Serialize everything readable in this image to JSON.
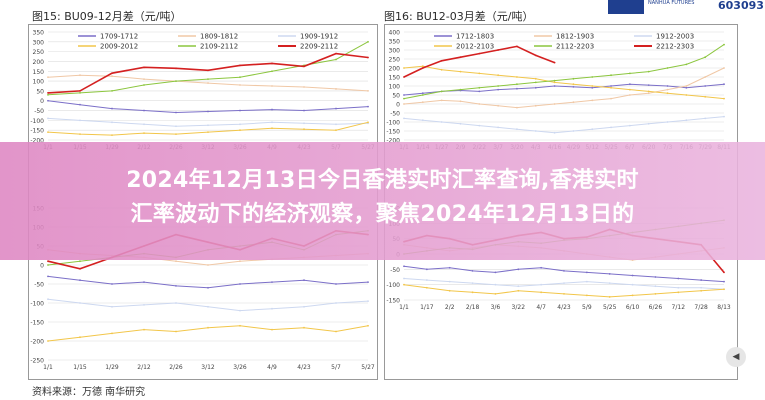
{
  "header": {
    "chart1_title": "图15:  BU09-12月差（元/吨）",
    "chart2_title": "图16:   BU12-03月差（元/吨）",
    "logo_text": "NANHUA FUTURES",
    "logo_code": "603093"
  },
  "banner": {
    "line1": "2024年12月13日今日香港实时汇率查询,香港实时",
    "line2": "汇率波动下的经济观察，聚焦2024年12月13日的"
  },
  "footer": {
    "source": "资料来源：万德  南华研究"
  },
  "colors": {
    "grid": "#dddddd",
    "axis": "#999999"
  },
  "chart_data": [
    {
      "type": "line",
      "title": "图15:  BU09-12月差（元/吨）",
      "categories": [
        "1/1",
        "1/15",
        "1/29",
        "2/12",
        "2/26",
        "3/12",
        "3/26",
        "4/9",
        "4/23",
        "5/7",
        "5/27"
      ],
      "ylim": [
        -200,
        350
      ],
      "yticks": [
        -200,
        -150,
        -100,
        -50,
        0,
        50,
        100,
        150,
        200,
        250,
        300,
        350
      ],
      "series": [
        {
          "name": "1709-1712",
          "color": "#7b6fc8",
          "values": [
            0,
            -20,
            -40,
            -50,
            -60,
            -55,
            -50,
            -45,
            -50,
            -40,
            -30
          ]
        },
        {
          "name": "1809-1812",
          "color": "#f0c8a6",
          "values": [
            120,
            130,
            125,
            110,
            100,
            90,
            80,
            75,
            70,
            60,
            50
          ]
        },
        {
          "name": "1909-1912",
          "color": "#cdd8f0",
          "values": [
            -90,
            -100,
            -110,
            -120,
            -130,
            -125,
            -120,
            -110,
            -115,
            -120,
            -115
          ]
        },
        {
          "name": "2009-2012",
          "color": "#f2c64a",
          "values": [
            -160,
            -170,
            -175,
            -165,
            -170,
            -160,
            -150,
            -140,
            -145,
            -150,
            -110
          ]
        },
        {
          "name": "2109-2112",
          "color": "#8cc63f",
          "values": [
            30,
            40,
            50,
            80,
            100,
            110,
            120,
            150,
            180,
            210,
            300
          ]
        },
        {
          "name": "2209-2112",
          "color": "#d42020",
          "values": [
            40,
            50,
            140,
            170,
            165,
            155,
            180,
            190,
            175,
            240,
            220
          ]
        }
      ]
    },
    {
      "type": "line",
      "title": "图16:   BU12-03月差（元/吨）",
      "categories": [
        "1/1",
        "1/14",
        "1/27",
        "2/9",
        "2/22",
        "3/7",
        "3/20",
        "4/3",
        "4/16",
        "4/29",
        "5/12",
        "5/25",
        "6/7",
        "6/20",
        "7/3",
        "7/16",
        "7/29",
        "8/11"
      ],
      "ylim": [
        -200,
        400
      ],
      "yticks": [
        -200,
        -150,
        -100,
        -50,
        0,
        50,
        100,
        150,
        200,
        250,
        300,
        350,
        400
      ],
      "series": [
        {
          "name": "1712-1803",
          "color": "#7b6fc8",
          "values": [
            50,
            60,
            70,
            75,
            70,
            80,
            85,
            90,
            100,
            95,
            90,
            100,
            110,
            105,
            100,
            90,
            100,
            110
          ]
        },
        {
          "name": "1812-1903",
          "color": "#f0c8a6",
          "values": [
            0,
            10,
            20,
            15,
            0,
            -10,
            -20,
            -10,
            0,
            10,
            20,
            30,
            50,
            60,
            80,
            100,
            150,
            200
          ]
        },
        {
          "name": "1912-2003",
          "color": "#cdd8f0",
          "values": [
            -80,
            -90,
            -100,
            -110,
            -120,
            -130,
            -140,
            -150,
            -160,
            -150,
            -140,
            -130,
            -120,
            -110,
            -100,
            -90,
            -80,
            -70
          ]
        },
        {
          "name": "2012-2103",
          "color": "#f2c64a",
          "values": [
            200,
            210,
            190,
            180,
            170,
            160,
            150,
            140,
            120,
            110,
            100,
            90,
            80,
            70,
            60,
            50,
            40,
            30
          ]
        },
        {
          "name": "2112-2203",
          "color": "#8cc63f",
          "values": [
            30,
            50,
            70,
            80,
            90,
            100,
            110,
            120,
            130,
            140,
            150,
            160,
            170,
            180,
            200,
            220,
            260,
            330
          ]
        },
        {
          "name": "2212-2303",
          "color": "#d42020",
          "values": [
            150,
            200,
            240,
            260,
            280,
            300,
            320,
            270,
            230,
            null,
            null,
            null,
            null,
            null,
            null,
            null,
            null,
            null
          ]
        }
      ]
    },
    {
      "type": "line",
      "title": "",
      "categories": [
        "1/1",
        "1/15",
        "1/29",
        "2/12",
        "2/26",
        "3/12",
        "3/26",
        "4/9",
        "4/23",
        "5/7",
        "5/27"
      ],
      "ylim": [
        -250,
        150
      ],
      "yticks": [
        -250,
        -200,
        -150,
        -100,
        -50,
        0,
        50,
        100,
        150
      ],
      "series": [
        {
          "name": "",
          "color": "#7b6fc8",
          "values": [
            -30,
            -40,
            -50,
            -45,
            -55,
            -60,
            -50,
            -45,
            -40,
            -50,
            -45
          ]
        },
        {
          "name": "",
          "color": "#f0c8a6",
          "values": [
            40,
            30,
            25,
            20,
            10,
            0,
            10,
            15,
            20,
            25,
            30
          ]
        },
        {
          "name": "",
          "color": "#cdd8f0",
          "values": [
            -90,
            -100,
            -110,
            -105,
            -100,
            -110,
            -120,
            -115,
            -110,
            -100,
            -95
          ]
        },
        {
          "name": "",
          "color": "#f2c64a",
          "values": [
            -200,
            -190,
            -180,
            -170,
            -175,
            -165,
            -160,
            -170,
            -165,
            -175,
            -160
          ]
        },
        {
          "name": "",
          "color": "#8cc63f",
          "values": [
            0,
            10,
            20,
            30,
            20,
            40,
            50,
            60,
            40,
            80,
            90
          ]
        },
        {
          "name": "",
          "color": "#d42020",
          "values": [
            10,
            -10,
            20,
            50,
            80,
            60,
            40,
            70,
            50,
            90,
            80
          ]
        }
      ]
    },
    {
      "type": "line",
      "title": "",
      "categories": [
        "1/1",
        "1/17",
        "2/2",
        "2/18",
        "3/6",
        "3/22",
        "4/7",
        "4/23",
        "5/9",
        "5/25",
        "6/10",
        "6/26",
        "7/12",
        "7/28",
        "8/13"
      ],
      "ylim": [
        -150,
        150
      ],
      "yticks": [
        -150,
        -100,
        -50,
        0,
        50,
        100,
        150
      ],
      "series": [
        {
          "name": "",
          "color": "#7b6fc8",
          "values": [
            -40,
            -50,
            -45,
            -55,
            -60,
            -50,
            -45,
            -55,
            -60,
            -65,
            -70,
            -75,
            -80,
            -85,
            -90
          ]
        },
        {
          "name": "",
          "color": "#f0c8a6",
          "values": [
            30,
            20,
            10,
            20,
            30,
            25,
            20,
            10,
            0,
            -10,
            -20,
            -10,
            0,
            10,
            20
          ]
        },
        {
          "name": "",
          "color": "#cdd8f0",
          "values": [
            -80,
            -85,
            -90,
            -95,
            -100,
            -105,
            -100,
            -95,
            -90,
            -95,
            -100,
            -105,
            -110,
            -110,
            -115
          ]
        },
        {
          "name": "",
          "color": "#f2c64a",
          "values": [
            -100,
            -110,
            -120,
            -125,
            -130,
            -120,
            -125,
            -130,
            -135,
            -140,
            -135,
            -130,
            -125,
            -120,
            -115
          ]
        },
        {
          "name": "",
          "color": "#8cc63f",
          "values": [
            0,
            10,
            20,
            15,
            30,
            40,
            35,
            45,
            50,
            60,
            70,
            80,
            90,
            100,
            110
          ]
        },
        {
          "name": "",
          "color": "#d42020",
          "values": [
            40,
            60,
            50,
            30,
            45,
            60,
            70,
            50,
            55,
            80,
            60,
            50,
            40,
            30,
            -60
          ]
        }
      ]
    }
  ]
}
